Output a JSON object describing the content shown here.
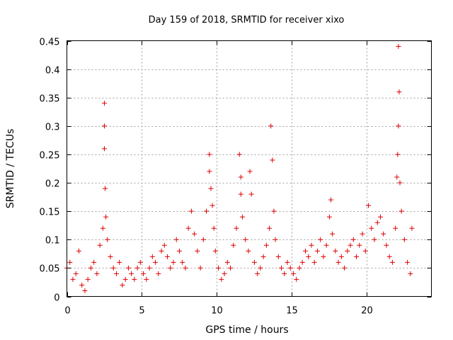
{
  "chart_data": {
    "type": "scatter",
    "title": "Day 159 of 2018, SRMTID for receiver xixo",
    "xlabel": "GPS time / hours",
    "ylabel": "SRMTID / TECUs",
    "xlim": [
      0,
      24.3
    ],
    "ylim": [
      0,
      0.45
    ],
    "x_ticks": [
      0,
      5,
      10,
      15,
      20
    ],
    "x_tick_labels": [
      "0",
      "5",
      "10",
      "15",
      "20"
    ],
    "y_ticks": [
      0,
      0.05,
      0.1,
      0.15,
      0.2,
      0.25,
      0.3,
      0.35,
      0.4,
      0.45
    ],
    "y_tick_labels": [
      "0",
      "0.05",
      "0.1",
      "0.15",
      "0.2",
      "0.25",
      "0.3",
      "0.35",
      "0.4",
      "0.45"
    ],
    "grid": true,
    "marker": "+",
    "series": [
      {
        "name": "SRMTID",
        "color": "#e00000",
        "x": [
          0.0,
          0.2,
          0.4,
          0.6,
          0.8,
          1.0,
          1.2,
          1.4,
          1.6,
          1.8,
          2.0,
          2.2,
          2.4,
          2.5,
          2.5,
          2.5,
          2.55,
          2.6,
          2.7,
          2.9,
          3.1,
          3.3,
          3.5,
          3.7,
          3.9,
          4.1,
          4.3,
          4.5,
          4.7,
          4.9,
          5.1,
          5.3,
          5.5,
          5.7,
          5.9,
          6.1,
          6.3,
          6.5,
          6.7,
          6.9,
          7.1,
          7.3,
          7.5,
          7.7,
          7.9,
          8.1,
          8.3,
          8.5,
          8.7,
          8.9,
          9.1,
          9.3,
          9.5,
          9.5,
          9.6,
          9.7,
          9.8,
          9.9,
          10.1,
          10.3,
          10.5,
          10.7,
          10.9,
          11.1,
          11.3,
          11.5,
          11.6,
          11.6,
          11.7,
          11.9,
          12.1,
          12.2,
          12.3,
          12.5,
          12.7,
          12.9,
          13.1,
          13.3,
          13.5,
          13.6,
          13.7,
          13.8,
          13.9,
          14.1,
          14.3,
          14.5,
          14.7,
          14.9,
          15.1,
          15.3,
          15.5,
          15.7,
          15.9,
          16.1,
          16.3,
          16.5,
          16.7,
          16.9,
          17.1,
          17.3,
          17.5,
          17.6,
          17.7,
          17.9,
          18.1,
          18.3,
          18.5,
          18.7,
          18.9,
          19.1,
          19.3,
          19.5,
          19.7,
          19.9,
          20.1,
          20.3,
          20.5,
          20.7,
          20.9,
          21.1,
          21.3,
          21.5,
          21.7,
          21.9,
          22.0,
          22.05,
          22.1,
          22.1,
          22.15,
          22.2,
          22.3,
          22.5,
          22.7,
          22.9,
          23.0
        ],
        "values": [
          0.05,
          0.06,
          0.03,
          0.04,
          0.08,
          0.02,
          0.01,
          0.03,
          0.05,
          0.06,
          0.04,
          0.09,
          0.12,
          0.34,
          0.3,
          0.26,
          0.19,
          0.14,
          0.1,
          0.07,
          0.05,
          0.04,
          0.06,
          0.02,
          0.03,
          0.05,
          0.04,
          0.03,
          0.05,
          0.06,
          0.04,
          0.03,
          0.05,
          0.07,
          0.06,
          0.04,
          0.08,
          0.09,
          0.07,
          0.05,
          0.06,
          0.1,
          0.08,
          0.06,
          0.05,
          0.12,
          0.15,
          0.11,
          0.08,
          0.05,
          0.1,
          0.15,
          0.25,
          0.22,
          0.19,
          0.16,
          0.12,
          0.08,
          0.05,
          0.03,
          0.04,
          0.06,
          0.05,
          0.09,
          0.12,
          0.25,
          0.21,
          0.18,
          0.14,
          0.1,
          0.08,
          0.22,
          0.18,
          0.06,
          0.04,
          0.05,
          0.07,
          0.09,
          0.12,
          0.3,
          0.24,
          0.15,
          0.1,
          0.07,
          0.05,
          0.04,
          0.06,
          0.05,
          0.04,
          0.03,
          0.05,
          0.06,
          0.08,
          0.07,
          0.09,
          0.06,
          0.08,
          0.1,
          0.07,
          0.09,
          0.14,
          0.17,
          0.11,
          0.08,
          0.06,
          0.07,
          0.05,
          0.08,
          0.09,
          0.1,
          0.07,
          0.09,
          0.11,
          0.08,
          0.16,
          0.12,
          0.1,
          0.13,
          0.14,
          0.11,
          0.09,
          0.07,
          0.06,
          0.12,
          0.21,
          0.25,
          0.3,
          0.44,
          0.36,
          0.2,
          0.15,
          0.1,
          0.06,
          0.04,
          0.12
        ]
      }
    ]
  }
}
